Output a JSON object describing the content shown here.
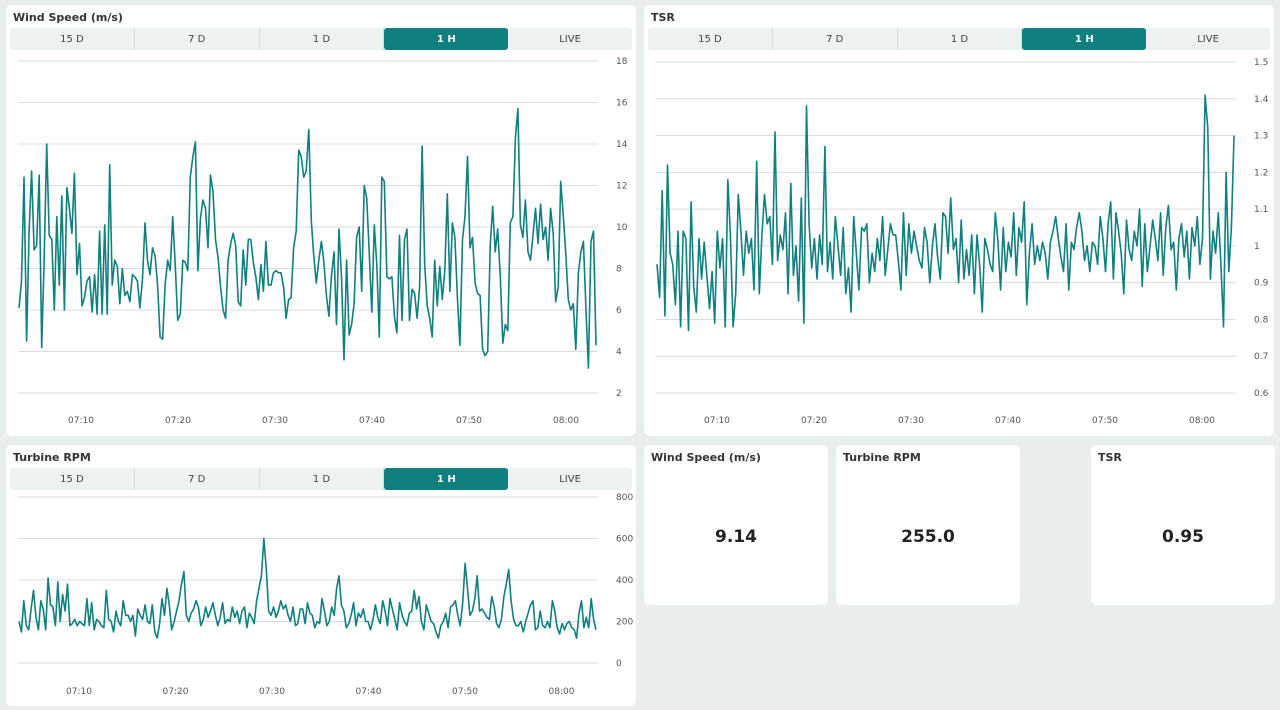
{
  "range_options": [
    "15 D",
    "7 D",
    "1 D",
    "1 H",
    "LIVE"
  ],
  "active_range": "1 H",
  "line_color": "#0f7f7f",
  "charts": [
    {
      "title": "Wind Speed (m/s)",
      "x_labels": [
        "07:10",
        "07:20",
        "07:30",
        "07:40",
        "07:50",
        "08:00"
      ],
      "y_labels": [
        "2",
        "4",
        "6",
        "8",
        "10",
        "12",
        "14",
        "16",
        "18"
      ]
    },
    {
      "title": "TSR",
      "x_labels": [
        "07:10",
        "07:20",
        "07:30",
        "07:40",
        "07:50",
        "08:00"
      ],
      "y_labels": [
        "0.6",
        "0.7",
        "0.8",
        "0.9",
        "1",
        "1.1",
        "1.2",
        "1.3",
        "1.4",
        "1.5"
      ]
    },
    {
      "title": "Turbine RPM",
      "x_labels": [
        "07:10",
        "07:20",
        "07:30",
        "07:40",
        "07:50",
        "08:00"
      ],
      "y_labels": [
        "0",
        "200",
        "400",
        "600",
        "800"
      ]
    }
  ],
  "stats": [
    {
      "title": "Wind Speed (m/s)",
      "value": "9.14"
    },
    {
      "title": "Turbine RPM",
      "value": "255.0"
    },
    {
      "title": "TSR",
      "value": "0.95"
    }
  ],
  "chart_data": [
    {
      "type": "line",
      "title": "Wind Speed (m/s)",
      "xlabel": "",
      "ylabel": "",
      "ylim": [
        2,
        18
      ],
      "x_range": [
        "07:03",
        "08:04"
      ],
      "grid": true,
      "series": [
        {
          "values": [
            6.1,
            7.4,
            12.4,
            4.5,
            9.8,
            12.7,
            8.9,
            9.1,
            12.5,
            4.2,
            8.5,
            14.0,
            9.6,
            9.4,
            6.0,
            10.5,
            7.2,
            11.5,
            6.0,
            11.9,
            10.9,
            9.7,
            12.6,
            7.7,
            9.2,
            6.2,
            6.6,
            7.4,
            7.6,
            5.9,
            7.7,
            5.8,
            9.8,
            5.8,
            10.1,
            5.8,
            13.0,
            7.2,
            8.4,
            8.1,
            6.3,
            8.0,
            6.7,
            6.9,
            6.4,
            7.7,
            7.6,
            7.4,
            6.1,
            7.5,
            10.2,
            8.4,
            7.7,
            9.0,
            8.6,
            7.2,
            4.7,
            4.6,
            7.2,
            8.4,
            7.9,
            10.5,
            8.2,
            5.5,
            5.8,
            8.4,
            8.3,
            7.9,
            12.4,
            13.4,
            14.1,
            7.9,
            10.4,
            11.3,
            10.9,
            9.0,
            12.5,
            11.7,
            9.4,
            8.5,
            7.1,
            6.0,
            5.6,
            8.4,
            9.2,
            9.7,
            9.1,
            6.4,
            6.2,
            8.9,
            7.2,
            9.4,
            9.4,
            8.3,
            7.6,
            6.5,
            8.2,
            6.9,
            9.3,
            7.2,
            7.2,
            7.8,
            7.9,
            7.8,
            7.8,
            7.1,
            5.6,
            6.5,
            6.6,
            9.0,
            9.8,
            13.7,
            13.4,
            12.4,
            12.7,
            14.7,
            10.3,
            8.6,
            7.3,
            8.4,
            9.3,
            8.3,
            6.7,
            5.7,
            7.6,
            8.8,
            5.3,
            9.9,
            7.6,
            3.6,
            8.4,
            4.8,
            5.3,
            6.3,
            9.5,
            10.0,
            6.9,
            12.0,
            11.4,
            8.8,
            5.9,
            10.1,
            8.2,
            4.7,
            12.4,
            12.2,
            7.6,
            7.5,
            7.6,
            5.7,
            4.9,
            9.6,
            5.5,
            9.4,
            9.9,
            5.5,
            7.0,
            6.8,
            5.6,
            7.1,
            13.9,
            8.2,
            6.2,
            5.6,
            4.7,
            8.4,
            6.2,
            8.1,
            6.5,
            7.9,
            11.6,
            6.9,
            10.2,
            9.5,
            6.6,
            4.3,
            9.4,
            10.5,
            13.4,
            9.0,
            9.5,
            7.3,
            6.8,
            6.7,
            4.1,
            3.8,
            4.0,
            9.1,
            11.0,
            8.8,
            9.9,
            7.6,
            4.4,
            5.3,
            5.0,
            10.2,
            10.5,
            14.3,
            15.7,
            10.1,
            9.5,
            11.3,
            8.8,
            8.4,
            9.6,
            10.9,
            9.2,
            11.1,
            9.4,
            10.0,
            8.4,
            10.9,
            9.7,
            6.4,
            7.1,
            12.2,
            10.6,
            8.7,
            6.5,
            6.0,
            6.3,
            4.1,
            7.8,
            8.8,
            9.3,
            6.1,
            3.2,
            9.3,
            9.8,
            4.3
          ]
        }
      ]
    },
    {
      "type": "line",
      "title": "TSR",
      "xlabel": "",
      "ylabel": "",
      "ylim": [
        0.6,
        1.5
      ],
      "x_range": [
        "07:03",
        "08:04"
      ],
      "grid": true,
      "series": [
        {
          "values": [
            0.95,
            0.86,
            1.15,
            0.81,
            1.22,
            0.98,
            0.95,
            0.84,
            1.04,
            0.78,
            1.04,
            1.02,
            0.77,
            1.12,
            0.89,
            0.82,
            1.02,
            0.91,
            1.01,
            0.92,
            0.83,
            0.93,
            0.79,
            1.04,
            0.94,
            1.02,
            0.78,
            1.18,
            1.03,
            0.78,
            0.87,
            1.14,
            1.04,
            0.92,
            1.04,
            0.98,
            1.02,
            0.88,
            1.23,
            0.87,
            1.03,
            1.14,
            1.06,
            1.08,
            0.95,
            1.31,
            0.96,
            1.03,
            0.99,
            1.09,
            0.87,
            1.17,
            0.92,
            1.0,
            0.85,
            1.13,
            0.79,
            1.38,
            1.06,
            0.94,
            1.02,
            0.91,
            1.03,
            0.95,
            1.27,
            0.93,
            1.01,
            0.91,
            1.08,
            1.0,
            0.92,
            1.05,
            0.87,
            0.94,
            0.82,
            1.08,
            0.98,
            0.88,
            1.05,
            1.04,
            1.06,
            0.9,
            0.98,
            0.93,
            1.02,
            0.96,
            1.08,
            0.92,
            0.99,
            1.06,
            1.03,
            1.03,
            0.96,
            0.88,
            1.09,
            0.92,
            1.06,
            0.98,
            1.04,
            1.0,
            0.96,
            0.94,
            1.05,
            1.01,
            0.9,
            1.0,
            1.06,
            0.97,
            0.91,
            1.09,
            1.08,
            0.98,
            1.13,
            0.99,
            1.02,
            0.9,
            1.07,
            0.91,
            0.99,
            0.92,
            1.03,
            0.87,
            1.03,
            0.95,
            0.82,
            1.02,
            0.99,
            0.95,
            0.93,
            1.09,
            1.01,
            0.88,
            1.05,
            0.93,
            1.01,
            0.97,
            1.09,
            0.92,
            1.05,
            1.01,
            1.12,
            0.84,
            0.98,
            1.06,
            0.95,
            1.0,
            0.96,
            1.01,
            0.98,
            0.91,
            1.01,
            1.04,
            1.08,
            1.02,
            0.97,
            0.93,
            1.06,
            0.88,
            1.01,
            0.99,
            1.05,
            1.09,
            1.04,
            0.96,
            1.0,
            0.93,
            1.01,
            1.0,
            0.95,
            1.08,
            1.02,
            0.93,
            1.06,
            1.12,
            0.91,
            1.09,
            1.04,
            0.98,
            0.87,
            1.07,
            0.99,
            0.96,
            1.04,
            1.0,
            1.1,
            0.89,
            1.06,
            0.93,
            1.0,
            1.07,
            1.02,
            0.96,
            1.09,
            0.92,
            1.05,
            1.11,
            0.99,
            1.01,
            0.88,
            1.02,
            1.06,
            0.97,
            1.04,
            0.91,
            1.05,
            1.0,
            1.08,
            0.95,
            1.02,
            1.41,
            1.32,
            0.91,
            1.04,
            0.98,
            1.09,
            0.95,
            0.78,
            1.2,
            0.93,
            1.05,
            1.3
          ]
        }
      ]
    },
    {
      "type": "line",
      "title": "Turbine RPM",
      "xlabel": "",
      "ylabel": "",
      "ylim": [
        0,
        800
      ],
      "x_range": [
        "07:03",
        "08:04"
      ],
      "grid": true,
      "series": [
        {
          "values": [
            200,
            150,
            300,
            180,
            160,
            260,
            350,
            220,
            160,
            300,
            260,
            160,
            410,
            280,
            270,
            180,
            390,
            200,
            330,
            250,
            380,
            180,
            190,
            210,
            180,
            200,
            190,
            180,
            310,
            180,
            290,
            160,
            210,
            200,
            180,
            170,
            350,
            210,
            200,
            150,
            250,
            200,
            180,
            300,
            230,
            230,
            200,
            230,
            130,
            260,
            230,
            210,
            280,
            200,
            190,
            280,
            150,
            120,
            190,
            310,
            230,
            360,
            280,
            160,
            200,
            250,
            300,
            380,
            440,
            230,
            200,
            240,
            260,
            300,
            270,
            180,
            210,
            270,
            220,
            250,
            290,
            230,
            180,
            220,
            290,
            190,
            210,
            200,
            270,
            220,
            250,
            190,
            250,
            270,
            170,
            240,
            220,
            190,
            300,
            360,
            420,
            600,
            450,
            250,
            230,
            270,
            220,
            250,
            300,
            260,
            280,
            230,
            200,
            270,
            180,
            190,
            260,
            260,
            190,
            290,
            240,
            230,
            170,
            200,
            190,
            310,
            250,
            180,
            200,
            270,
            230,
            360,
            420,
            280,
            250,
            170,
            190,
            230,
            290,
            180,
            240,
            220,
            260,
            200,
            200,
            160,
            210,
            280,
            220,
            190,
            300,
            250,
            180,
            310,
            260,
            210,
            160,
            290,
            230,
            200,
            180,
            240,
            250,
            350,
            260,
            320,
            200,
            160,
            280,
            240,
            200,
            190,
            150,
            120,
            180,
            200,
            240,
            170,
            270,
            280,
            300,
            230,
            180,
            290,
            480,
            360,
            230,
            250,
            310,
            420,
            250,
            260,
            240,
            220,
            210,
            320,
            270,
            190,
            170,
            210,
            320,
            380,
            450,
            300,
            210,
            180,
            180,
            200,
            150,
            200,
            240,
            280,
            300,
            160,
            170,
            250,
            180,
            170,
            200,
            170,
            300,
            250,
            170,
            140,
            190,
            160,
            190,
            200,
            170,
            160,
            120,
            240,
            300,
            170,
            220,
            170,
            310,
            210,
            160
          ]
        }
      ]
    }
  ]
}
